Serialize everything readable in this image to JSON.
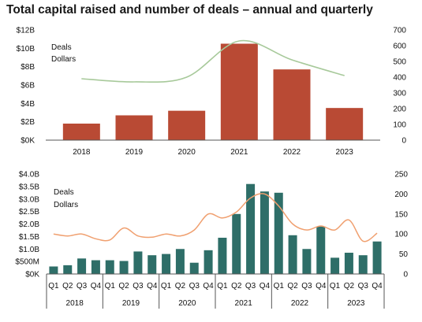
{
  "title": "Total capital raised and number of deals – annual and quarterly",
  "colors": {
    "dollars_annual": "#b94a34",
    "deals_annual": "#a7c99a",
    "dollars_quarterly": "#2e6e68",
    "deals_quarterly": "#f0a070"
  },
  "chart_data": [
    {
      "type": "bar",
      "categories": [
        "2018",
        "2019",
        "2020",
        "2021",
        "2022",
        "2023"
      ],
      "series": [
        {
          "name": "Dollars",
          "axis": "left",
          "values": [
            1.8,
            2.7,
            3.2,
            10.5,
            7.7,
            3.5
          ],
          "unit": "B"
        },
        {
          "name": "Deals",
          "axis": "right",
          "type": "line",
          "values": [
            390,
            370,
            400,
            630,
            510,
            410
          ]
        }
      ],
      "left_ticks": [
        "$0K",
        "$2B",
        "$4B",
        "$6B",
        "$8B",
        "$10B",
        "$12B"
      ],
      "right_ticks": [
        "0",
        "100",
        "200",
        "300",
        "400",
        "500",
        "600",
        "700"
      ],
      "ylim_left": [
        0,
        12
      ],
      "ylim_right": [
        0,
        700
      ],
      "legend": [
        "Deals",
        "Dollars"
      ],
      "legend_position": "top-left"
    },
    {
      "type": "bar",
      "categories": [
        "Q1",
        "Q2",
        "Q3",
        "Q4",
        "Q1",
        "Q2",
        "Q3",
        "Q4",
        "Q1",
        "Q2",
        "Q3",
        "Q4",
        "Q1",
        "Q2",
        "Q3",
        "Q4",
        "Q1",
        "Q2",
        "Q3",
        "Q4",
        "Q1",
        "Q2",
        "Q3",
        "Q4"
      ],
      "groups": [
        "2018",
        "2019",
        "2020",
        "2021",
        "2022",
        "2023"
      ],
      "series": [
        {
          "name": "Dollars",
          "axis": "left",
          "values": [
            0.3,
            0.35,
            0.62,
            0.55,
            0.55,
            0.52,
            0.9,
            0.75,
            0.8,
            1.0,
            0.45,
            0.95,
            1.45,
            2.4,
            3.6,
            3.3,
            3.25,
            1.55,
            1.0,
            1.9,
            0.65,
            0.85,
            0.75,
            1.3
          ],
          "unit": "B"
        },
        {
          "name": "Deals",
          "axis": "right",
          "type": "line",
          "values": [
            100,
            95,
            100,
            88,
            85,
            115,
            95,
            92,
            100,
            95,
            110,
            150,
            140,
            155,
            190,
            200,
            170,
            125,
            110,
            120,
            110,
            135,
            82,
            102
          ]
        }
      ],
      "left_ticks": [
        "$0K",
        "$500M",
        "$1.0B",
        "$1.5B",
        "$2.0B",
        "$2.5B",
        "$3.0B",
        "$3.5B",
        "$4.0B"
      ],
      "right_ticks": [
        "0",
        "50",
        "100",
        "150",
        "200",
        "250"
      ],
      "ylim_left": [
        0,
        4
      ],
      "ylim_right": [
        0,
        250
      ],
      "legend": [
        "Deals",
        "Dollars"
      ],
      "legend_position": "top-left"
    }
  ]
}
